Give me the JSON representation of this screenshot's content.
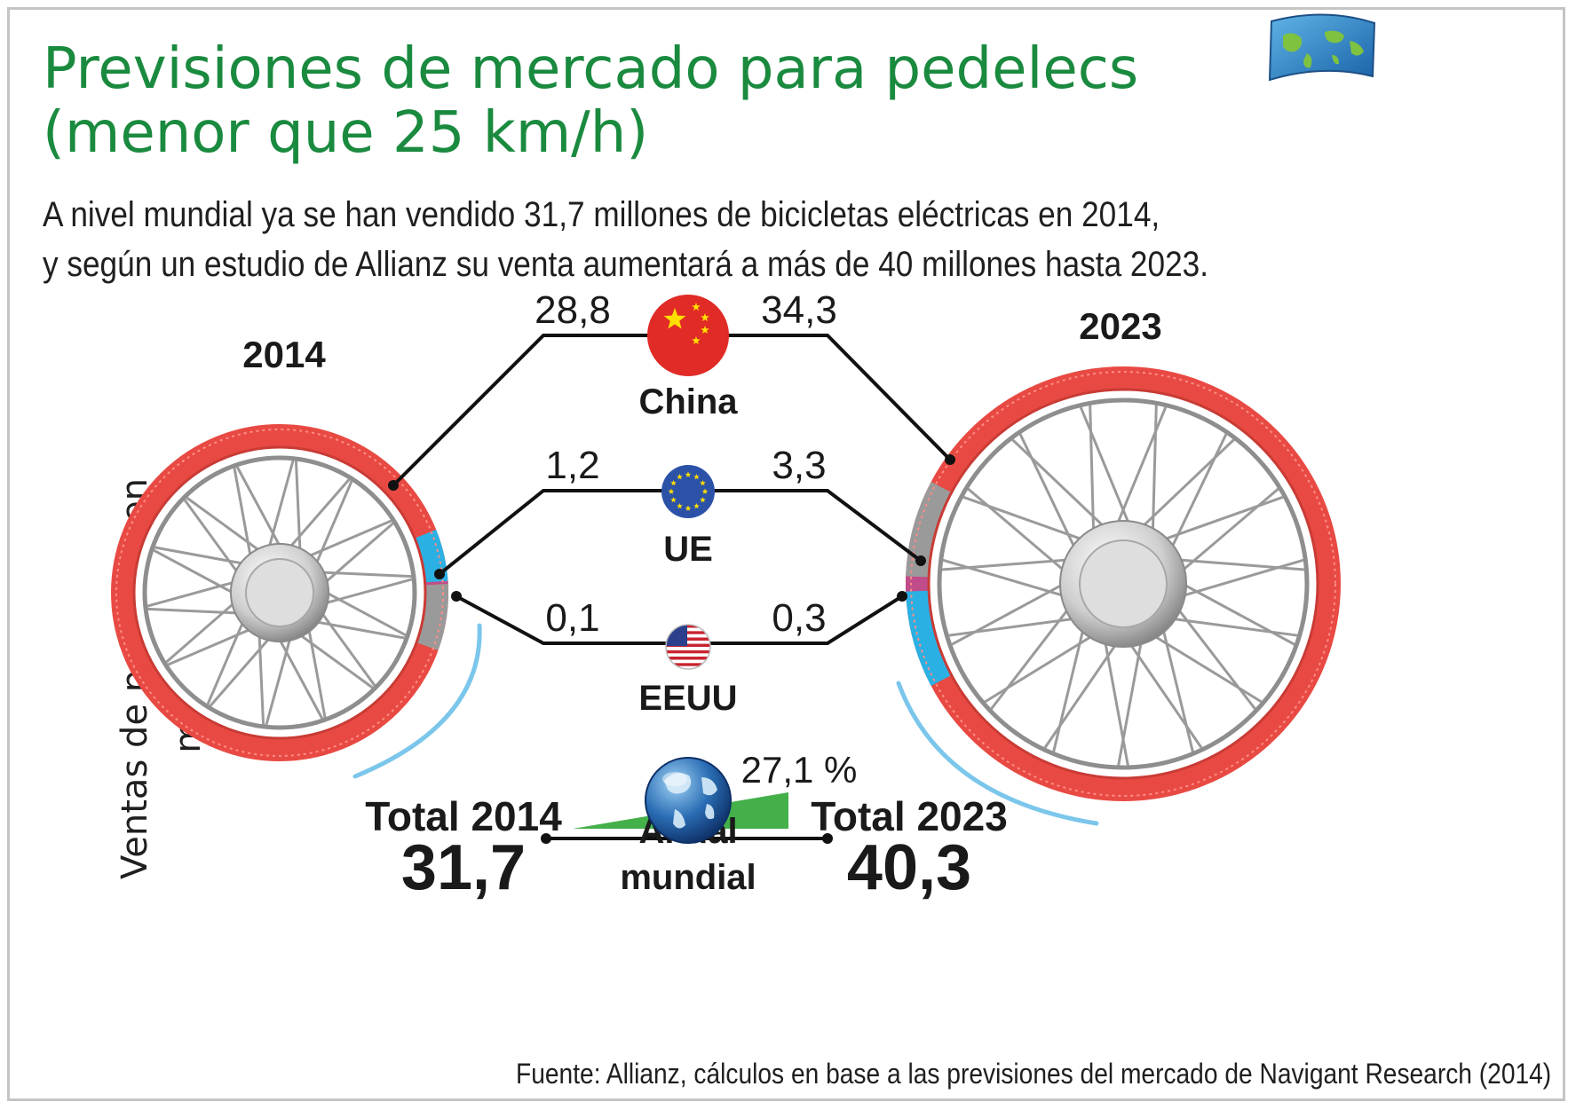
{
  "header": {
    "title_line1": "Previsiones de mercado para pedelecs",
    "title_line2": "(menor que 25 km/h)",
    "subtitle_line1": "A nivel mundial ya se han vendido 31,7 millones de bicicletas eléctricas en 2014,",
    "subtitle_line2": "y según un estudio de Allianz su venta aumentará a más de 40 millones hasta 2023."
  },
  "ylabel": "Ventas de pedelecs en millones",
  "source": "Fuente: Allianz, cálculos en base a las previsiones del mercado de Navigant Research (2014)",
  "logo_icon": "world-map-flag-icon",
  "colors": {
    "title": "#1a8a3f",
    "china": "#e8423d",
    "ue": "#2bb0e4",
    "eeuu": "#c04c8b",
    "other": "#9a9a9a",
    "growth": "#43b04a"
  },
  "chart_data": {
    "type": "bar",
    "categories": [
      "China",
      "UE",
      "EEUU"
    ],
    "years": [
      "2014",
      "2023"
    ],
    "series": [
      {
        "name": "2014",
        "values": [
          28.8,
          1.2,
          0.1
        ]
      },
      {
        "name": "2023",
        "values": [
          34.3,
          3.3,
          0.3
        ]
      }
    ],
    "value_labels": {
      "2014": [
        "28,8",
        "1,2",
        "0,1"
      ],
      "2023": [
        "34,3",
        "3,3",
        "0,3"
      ]
    },
    "totals": {
      "label_2014": "Total 2014",
      "value_2014": 31.7,
      "value_2014_label": "31,7",
      "label_2023": "Total 2023",
      "value_2023": 40.3,
      "value_2023_label": "40,3"
    },
    "growth": {
      "label_line1": "Anual",
      "label_line2": "mundial",
      "value": "27,1 %"
    },
    "region_icons": [
      "china-flag-icon",
      "eu-flag-icon",
      "usa-flag-icon"
    ],
    "total_icon": "globe-icon"
  }
}
